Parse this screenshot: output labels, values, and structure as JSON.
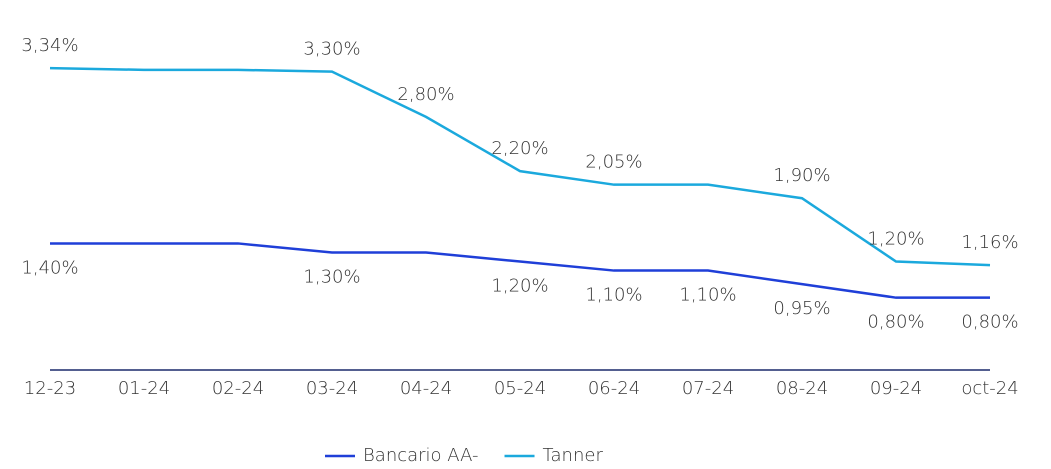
{
  "chart_data": {
    "type": "line",
    "categories": [
      "12-23",
      "01-24",
      "02-24",
      "03-24",
      "04-24",
      "05-24",
      "06-24",
      "07-24",
      "08-24",
      "09-24",
      "oct-24"
    ],
    "series": [
      {
        "name": "Bancario AA-",
        "color": "#1f3fd8",
        "values": [
          1.4,
          1.4,
          1.4,
          1.3,
          1.3,
          1.2,
          1.1,
          1.1,
          0.95,
          0.8,
          0.8
        ],
        "value_labels": [
          "1,40%",
          null,
          null,
          "1,30%",
          null,
          "1,20%",
          "1,10%",
          "1,10%",
          "0,95%",
          "0,80%",
          "0,80%"
        ]
      },
      {
        "name": "Tanner",
        "color": "#1ba9dd",
        "values": [
          3.34,
          3.32,
          3.32,
          3.3,
          2.8,
          2.2,
          2.05,
          2.05,
          1.9,
          1.2,
          1.16
        ],
        "value_labels": [
          "3,34%",
          null,
          null,
          "3,30%",
          "2,80%",
          "2,20%",
          "2,05%",
          null,
          "1,90%",
          "1,20%",
          "1,16%"
        ]
      }
    ],
    "ylim": [
      0,
      3.6
    ],
    "legend": "bottom"
  }
}
